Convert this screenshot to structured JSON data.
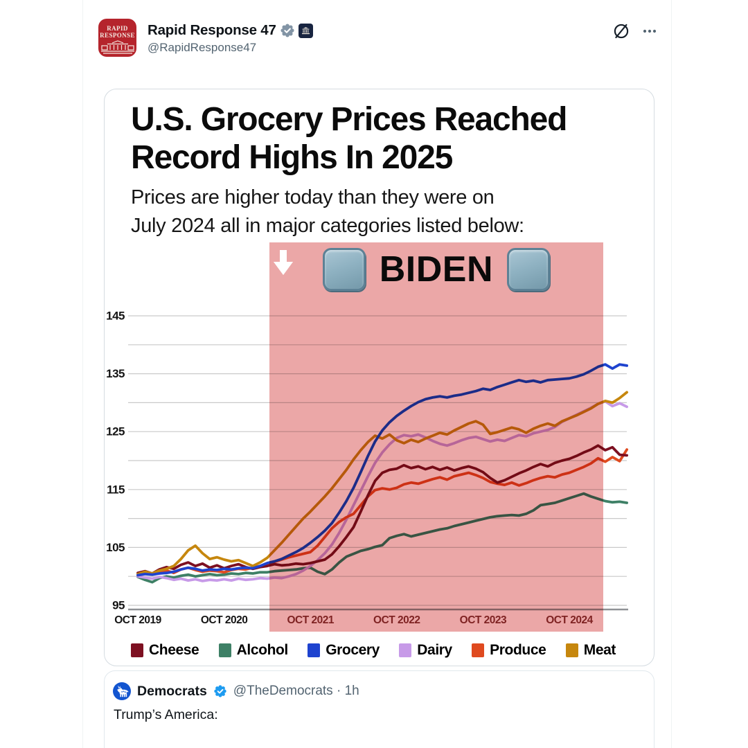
{
  "header": {
    "display_name": "Rapid Response 47",
    "handle": "@RapidResponse47",
    "avatar_text_line1": "RAPID",
    "avatar_text_line2": "RESPONSE"
  },
  "infographic": {
    "title_line1": "U.S. Grocery Prices Reached",
    "title_line2": "Record Highs In 2025",
    "subtitle_line1": "Prices are higher today than they were on",
    "subtitle_line2": "July 2024 all in major categories listed below:"
  },
  "chart_data": {
    "type": "line",
    "title": "U.S. Grocery Prices Reached Record Highs In 2025",
    "x_tick_labels": [
      "OCT 2019",
      "OCT 2020",
      "OCT 2021",
      "OCT 2022",
      "OCT 2023",
      "OCT 2024"
    ],
    "x_tick_months": [
      0,
      12,
      24,
      36,
      48,
      60
    ],
    "months_span": 68,
    "ylim": [
      95,
      145
    ],
    "y_ticks_labeled": [
      95,
      105,
      115,
      125,
      135,
      145
    ],
    "y_gridlines": [
      95,
      100,
      105,
      110,
      115,
      120,
      125,
      130,
      135,
      140,
      145
    ],
    "grid": true,
    "legend_position": "bottom",
    "shaded_region": {
      "label": "BIDEN",
      "color": "#eba7a7",
      "start_month": 18.3,
      "end_month": 64.7
    },
    "series": [
      {
        "name": "Cheese",
        "color": "#7d1021",
        "values": [
          100.6,
          100.9,
          100.5,
          101.2,
          101.6,
          101.3,
          102.0,
          102.4,
          101.8,
          102.2,
          101.5,
          101.9,
          101.4,
          101.8,
          102.1,
          101.6,
          101.3,
          101.6,
          101.8,
          102.1,
          101.9,
          102.0,
          102.2,
          102.1,
          102.3,
          102.6,
          102.9,
          103.8,
          105.2,
          106.8,
          108.5,
          111.2,
          114.0,
          116.5,
          117.9,
          118.4,
          118.6,
          119.2,
          118.7,
          119.0,
          118.5,
          118.9,
          118.4,
          118.8,
          118.3,
          118.7,
          119.0,
          118.6,
          118.0,
          117.0,
          116.2,
          116.6,
          117.2,
          117.8,
          118.3,
          118.9,
          119.4,
          119.0,
          119.6,
          120.0,
          120.3,
          120.8,
          121.4,
          121.9,
          122.6,
          121.8,
          122.3,
          121.0,
          120.9
        ]
      },
      {
        "name": "Alcohol",
        "color": "#3e8066",
        "values": [
          99.9,
          99.4,
          99.0,
          99.7,
          100.0,
          99.8,
          100.1,
          100.3,
          100.0,
          100.2,
          100.4,
          100.2,
          100.3,
          100.5,
          100.4,
          100.6,
          100.5,
          100.7,
          100.7,
          100.9,
          101.0,
          101.1,
          101.2,
          101.4,
          101.5,
          100.8,
          100.4,
          101.2,
          102.4,
          103.4,
          103.9,
          104.4,
          104.7,
          105.1,
          105.4,
          106.6,
          107.0,
          107.3,
          106.9,
          107.2,
          107.5,
          107.8,
          108.1,
          108.3,
          108.7,
          109.0,
          109.3,
          109.6,
          109.9,
          110.2,
          110.4,
          110.5,
          110.6,
          110.5,
          110.8,
          111.4,
          112.3,
          112.5,
          112.7,
          113.1,
          113.5,
          113.9,
          114.3,
          113.8,
          113.4,
          113.0,
          112.8,
          112.9,
          112.7
        ]
      },
      {
        "name": "Grocery",
        "color": "#1e43cf",
        "values": [
          100.2,
          100.4,
          100.3,
          100.5,
          100.6,
          100.8,
          101.2,
          101.5,
          101.3,
          101.0,
          101.2,
          101.1,
          101.3,
          101.2,
          101.4,
          101.5,
          101.4,
          101.8,
          102.3,
          102.6,
          103.0,
          103.6,
          104.2,
          104.9,
          105.8,
          106.8,
          107.9,
          109.2,
          111.0,
          113.0,
          115.3,
          118.0,
          120.8,
          123.3,
          125.2,
          126.6,
          127.7,
          128.6,
          129.4,
          130.1,
          130.6,
          130.9,
          131.1,
          130.9,
          131.2,
          131.4,
          131.7,
          132.0,
          132.4,
          132.2,
          132.7,
          133.1,
          133.5,
          133.9,
          133.6,
          133.8,
          133.5,
          133.9,
          134.0,
          134.1,
          134.2,
          134.5,
          134.9,
          135.5,
          136.2,
          136.6,
          135.9,
          136.6,
          136.4
        ]
      },
      {
        "name": "Dairy",
        "color": "#c79ae8",
        "values": [
          100.0,
          99.8,
          99.6,
          99.9,
          99.7,
          99.4,
          99.6,
          99.3,
          99.5,
          99.2,
          99.4,
          99.3,
          99.5,
          99.3,
          99.6,
          99.4,
          99.5,
          99.7,
          99.6,
          99.8,
          99.7,
          100.0,
          100.4,
          101.0,
          101.8,
          102.8,
          104.0,
          105.5,
          107.5,
          109.8,
          112.3,
          114.8,
          117.3,
          119.6,
          121.4,
          122.8,
          123.9,
          124.4,
          124.2,
          124.5,
          124.0,
          123.4,
          122.9,
          122.6,
          123.0,
          123.5,
          123.9,
          124.1,
          123.7,
          123.3,
          123.6,
          123.4,
          123.9,
          124.4,
          124.2,
          124.7,
          125.0,
          125.3,
          125.8,
          126.7,
          127.3,
          127.9,
          128.5,
          129.1,
          129.8,
          130.2,
          129.4,
          129.9,
          129.3
        ]
      },
      {
        "name": "Produce",
        "color": "#df4a1f",
        "values": [
          100.2,
          100.5,
          100.3,
          100.7,
          101.0,
          100.6,
          101.2,
          101.5,
          101.1,
          100.8,
          101.0,
          100.9,
          100.7,
          101.1,
          101.3,
          101.2,
          101.5,
          101.8,
          102.1,
          102.5,
          102.9,
          103.3,
          103.6,
          103.9,
          104.2,
          105.3,
          106.8,
          108.3,
          109.4,
          110.2,
          110.8,
          112.3,
          113.8,
          114.9,
          115.2,
          115.0,
          115.3,
          115.9,
          116.2,
          116.0,
          116.4,
          116.8,
          117.1,
          116.7,
          117.3,
          117.6,
          117.9,
          117.5,
          117.0,
          116.3,
          116.0,
          115.8,
          116.2,
          115.7,
          116.1,
          116.6,
          117.0,
          117.3,
          117.1,
          117.6,
          117.9,
          118.4,
          118.9,
          119.5,
          120.4,
          119.8,
          120.6,
          119.9,
          121.9
        ]
      },
      {
        "name": "Meat",
        "color": "#c6870e",
        "values": [
          100.4,
          100.8,
          100.5,
          101.0,
          101.3,
          101.8,
          103.0,
          104.5,
          105.3,
          104.0,
          103.0,
          103.3,
          102.9,
          102.6,
          102.8,
          102.3,
          101.8,
          102.4,
          103.2,
          104.5,
          105.8,
          107.2,
          108.6,
          110.0,
          111.2,
          112.5,
          113.8,
          115.2,
          116.8,
          118.4,
          120.2,
          121.8,
          123.2,
          124.3,
          123.8,
          124.5,
          123.5,
          123.0,
          123.6,
          123.2,
          123.8,
          124.3,
          124.8,
          124.5,
          125.2,
          125.8,
          126.4,
          126.8,
          126.2,
          124.6,
          124.9,
          125.3,
          125.7,
          125.4,
          124.8,
          125.5,
          126.0,
          126.4,
          126.0,
          126.8,
          127.3,
          127.8,
          128.4,
          129.0,
          129.8,
          130.3,
          130.0,
          130.8,
          131.8
        ]
      }
    ],
    "draw_order": [
      "Alcohol",
      "Dairy",
      "Produce",
      "Cheese",
      "Meat",
      "Grocery"
    ]
  },
  "legend": [
    {
      "label": "Cheese",
      "color": "#7d1021"
    },
    {
      "label": "Alcohol",
      "color": "#3e8066"
    },
    {
      "label": "Grocery",
      "color": "#1e43cf"
    },
    {
      "label": "Dairy",
      "color": "#c79ae8"
    },
    {
      "label": "Produce",
      "color": "#df4a1f"
    },
    {
      "label": "Meat",
      "color": "#c6870e"
    }
  ],
  "quote": {
    "display_name": "Democrats",
    "handle": "@TheDemocrats",
    "separator": "·",
    "time": "1h",
    "text": "Trump’s America:"
  }
}
